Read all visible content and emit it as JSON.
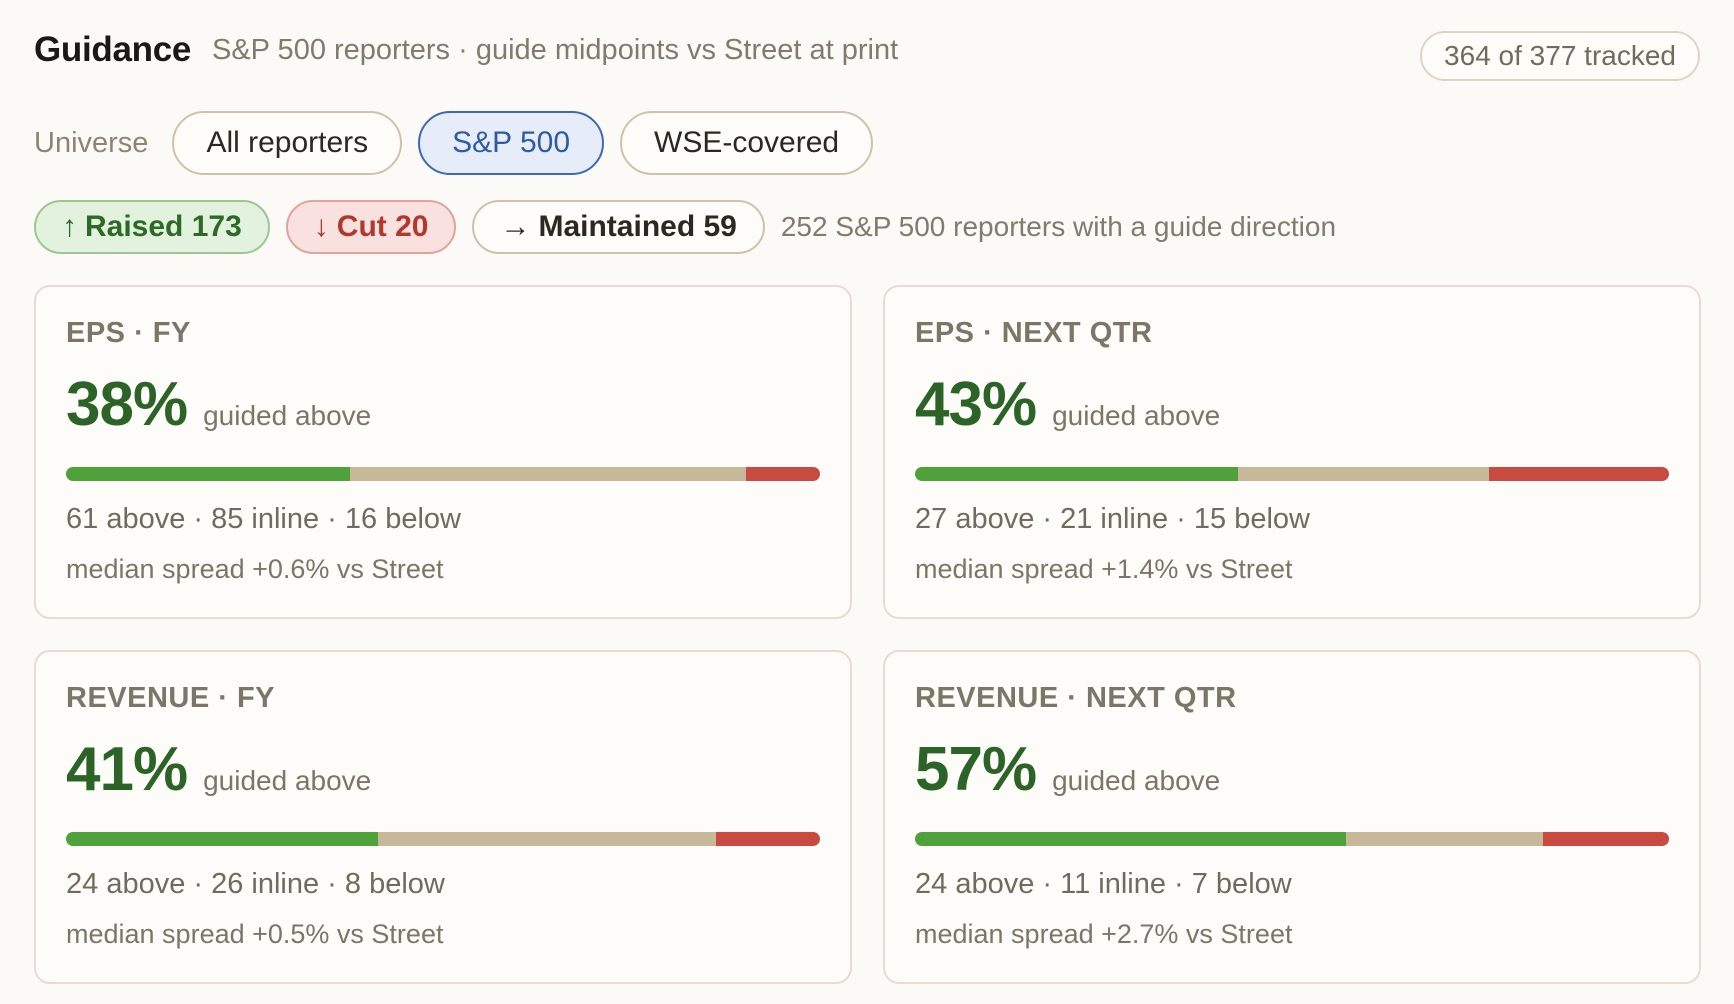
{
  "header": {
    "title": "Guidance",
    "subtitle": "S&P 500 reporters · guide midpoints vs Street at print",
    "tracked": "364 of 377 tracked"
  },
  "universe": {
    "label": "Universe",
    "options": [
      "All reporters",
      "S&P 500",
      "WSE-covered"
    ],
    "selected": "S&P 500"
  },
  "direction": {
    "raised": {
      "arrow": "↑",
      "label": "Raised 173"
    },
    "cut": {
      "arrow": "↓",
      "label": "Cut 20"
    },
    "maintained": {
      "arrow": "→",
      "label": "Maintained 59"
    },
    "note": "252 S&P 500 reporters with a guide direction"
  },
  "colors": {
    "above": "#4fa23a",
    "inline": "#c6b898",
    "below": "#c84a40",
    "accent": "#2e5aa8"
  },
  "cards": [
    {
      "label": "EPS · FY",
      "pct": "38%",
      "caption": "guided above",
      "above": 61,
      "inline": 85,
      "below": 16,
      "counts_text": "61 above · 85 inline · 16 below",
      "spread_text": "median spread +0.6% vs Street"
    },
    {
      "label": "EPS · NEXT QTR",
      "pct": "43%",
      "caption": "guided above",
      "above": 27,
      "inline": 21,
      "below": 15,
      "counts_text": "27 above · 21 inline · 15 below",
      "spread_text": "median spread +1.4% vs Street"
    },
    {
      "label": "REVENUE · FY",
      "pct": "41%",
      "caption": "guided above",
      "above": 24,
      "inline": 26,
      "below": 8,
      "counts_text": "24 above · 26 inline · 8 below",
      "spread_text": "median spread +0.5% vs Street"
    },
    {
      "label": "REVENUE · NEXT QTR",
      "pct": "57%",
      "caption": "guided above",
      "above": 24,
      "inline": 11,
      "below": 7,
      "counts_text": "24 above · 11 inline · 7 below",
      "spread_text": "median spread +2.7% vs Street"
    }
  ]
}
